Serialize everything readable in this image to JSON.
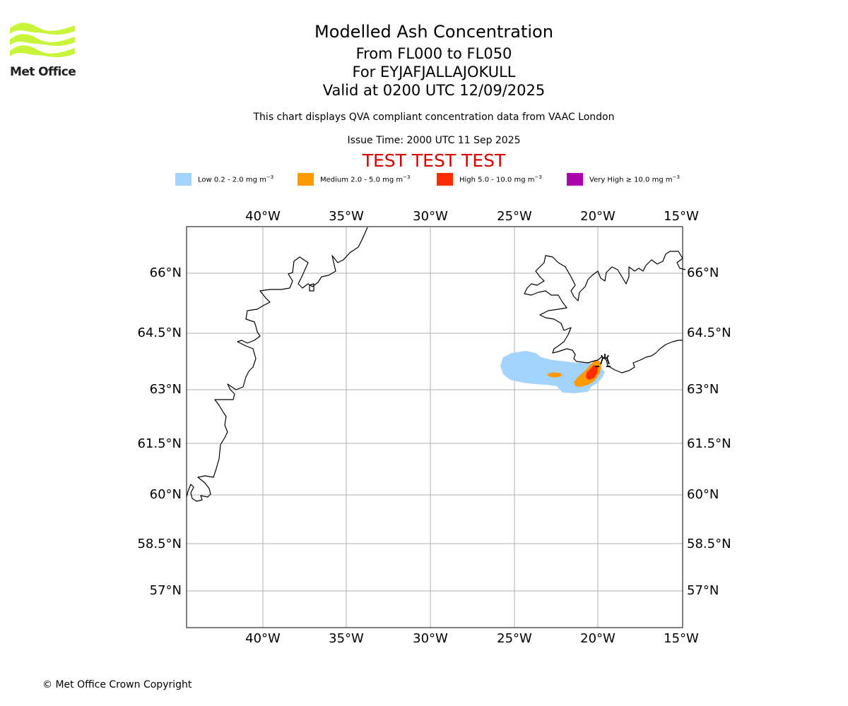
{
  "header": {
    "logo_text": "Met Office",
    "title": "Modelled Ash Concentration",
    "levels": "From FL000 to FL050",
    "volcano": "For EYJAFJALLAJOKULL",
    "valid": "Valid at 0200 UTC 12/09/2025",
    "description": "This chart displays QVA compliant concentration data from VAAC London",
    "issue": "Issue Time: 2000 UTC 11 Sep 2025",
    "test_banner": "TEST TEST TEST"
  },
  "legend": [
    {
      "text": "Low 0.2 - 2.0 mg m",
      "exp": "−3",
      "color": "#a3d3ff"
    },
    {
      "text": "Medium 2.0 - 5.0 mg m",
      "exp": "−3",
      "color": "#ff9a00"
    },
    {
      "text": "High 5.0 - 10.0 mg m",
      "exp": "−3",
      "color": "#ff2c00"
    },
    {
      "text": "Very High  ≥  10.0 mg m",
      "exp": "−3",
      "color": "#ac00ac"
    }
  ],
  "map": {
    "lon_labels": [
      "40°W",
      "35°W",
      "30°W",
      "25°W",
      "20°W",
      "15°W"
    ],
    "lat_labels": [
      "66°N",
      "64.5°N",
      "63°N",
      "61.5°N",
      "60°N",
      "58.5°N",
      "57°N"
    ],
    "grid_color": "#b0b0b0",
    "volcano_marker": "volcano-icon"
  },
  "footer": {
    "copyright": "© Met Office Crown Copyright"
  }
}
